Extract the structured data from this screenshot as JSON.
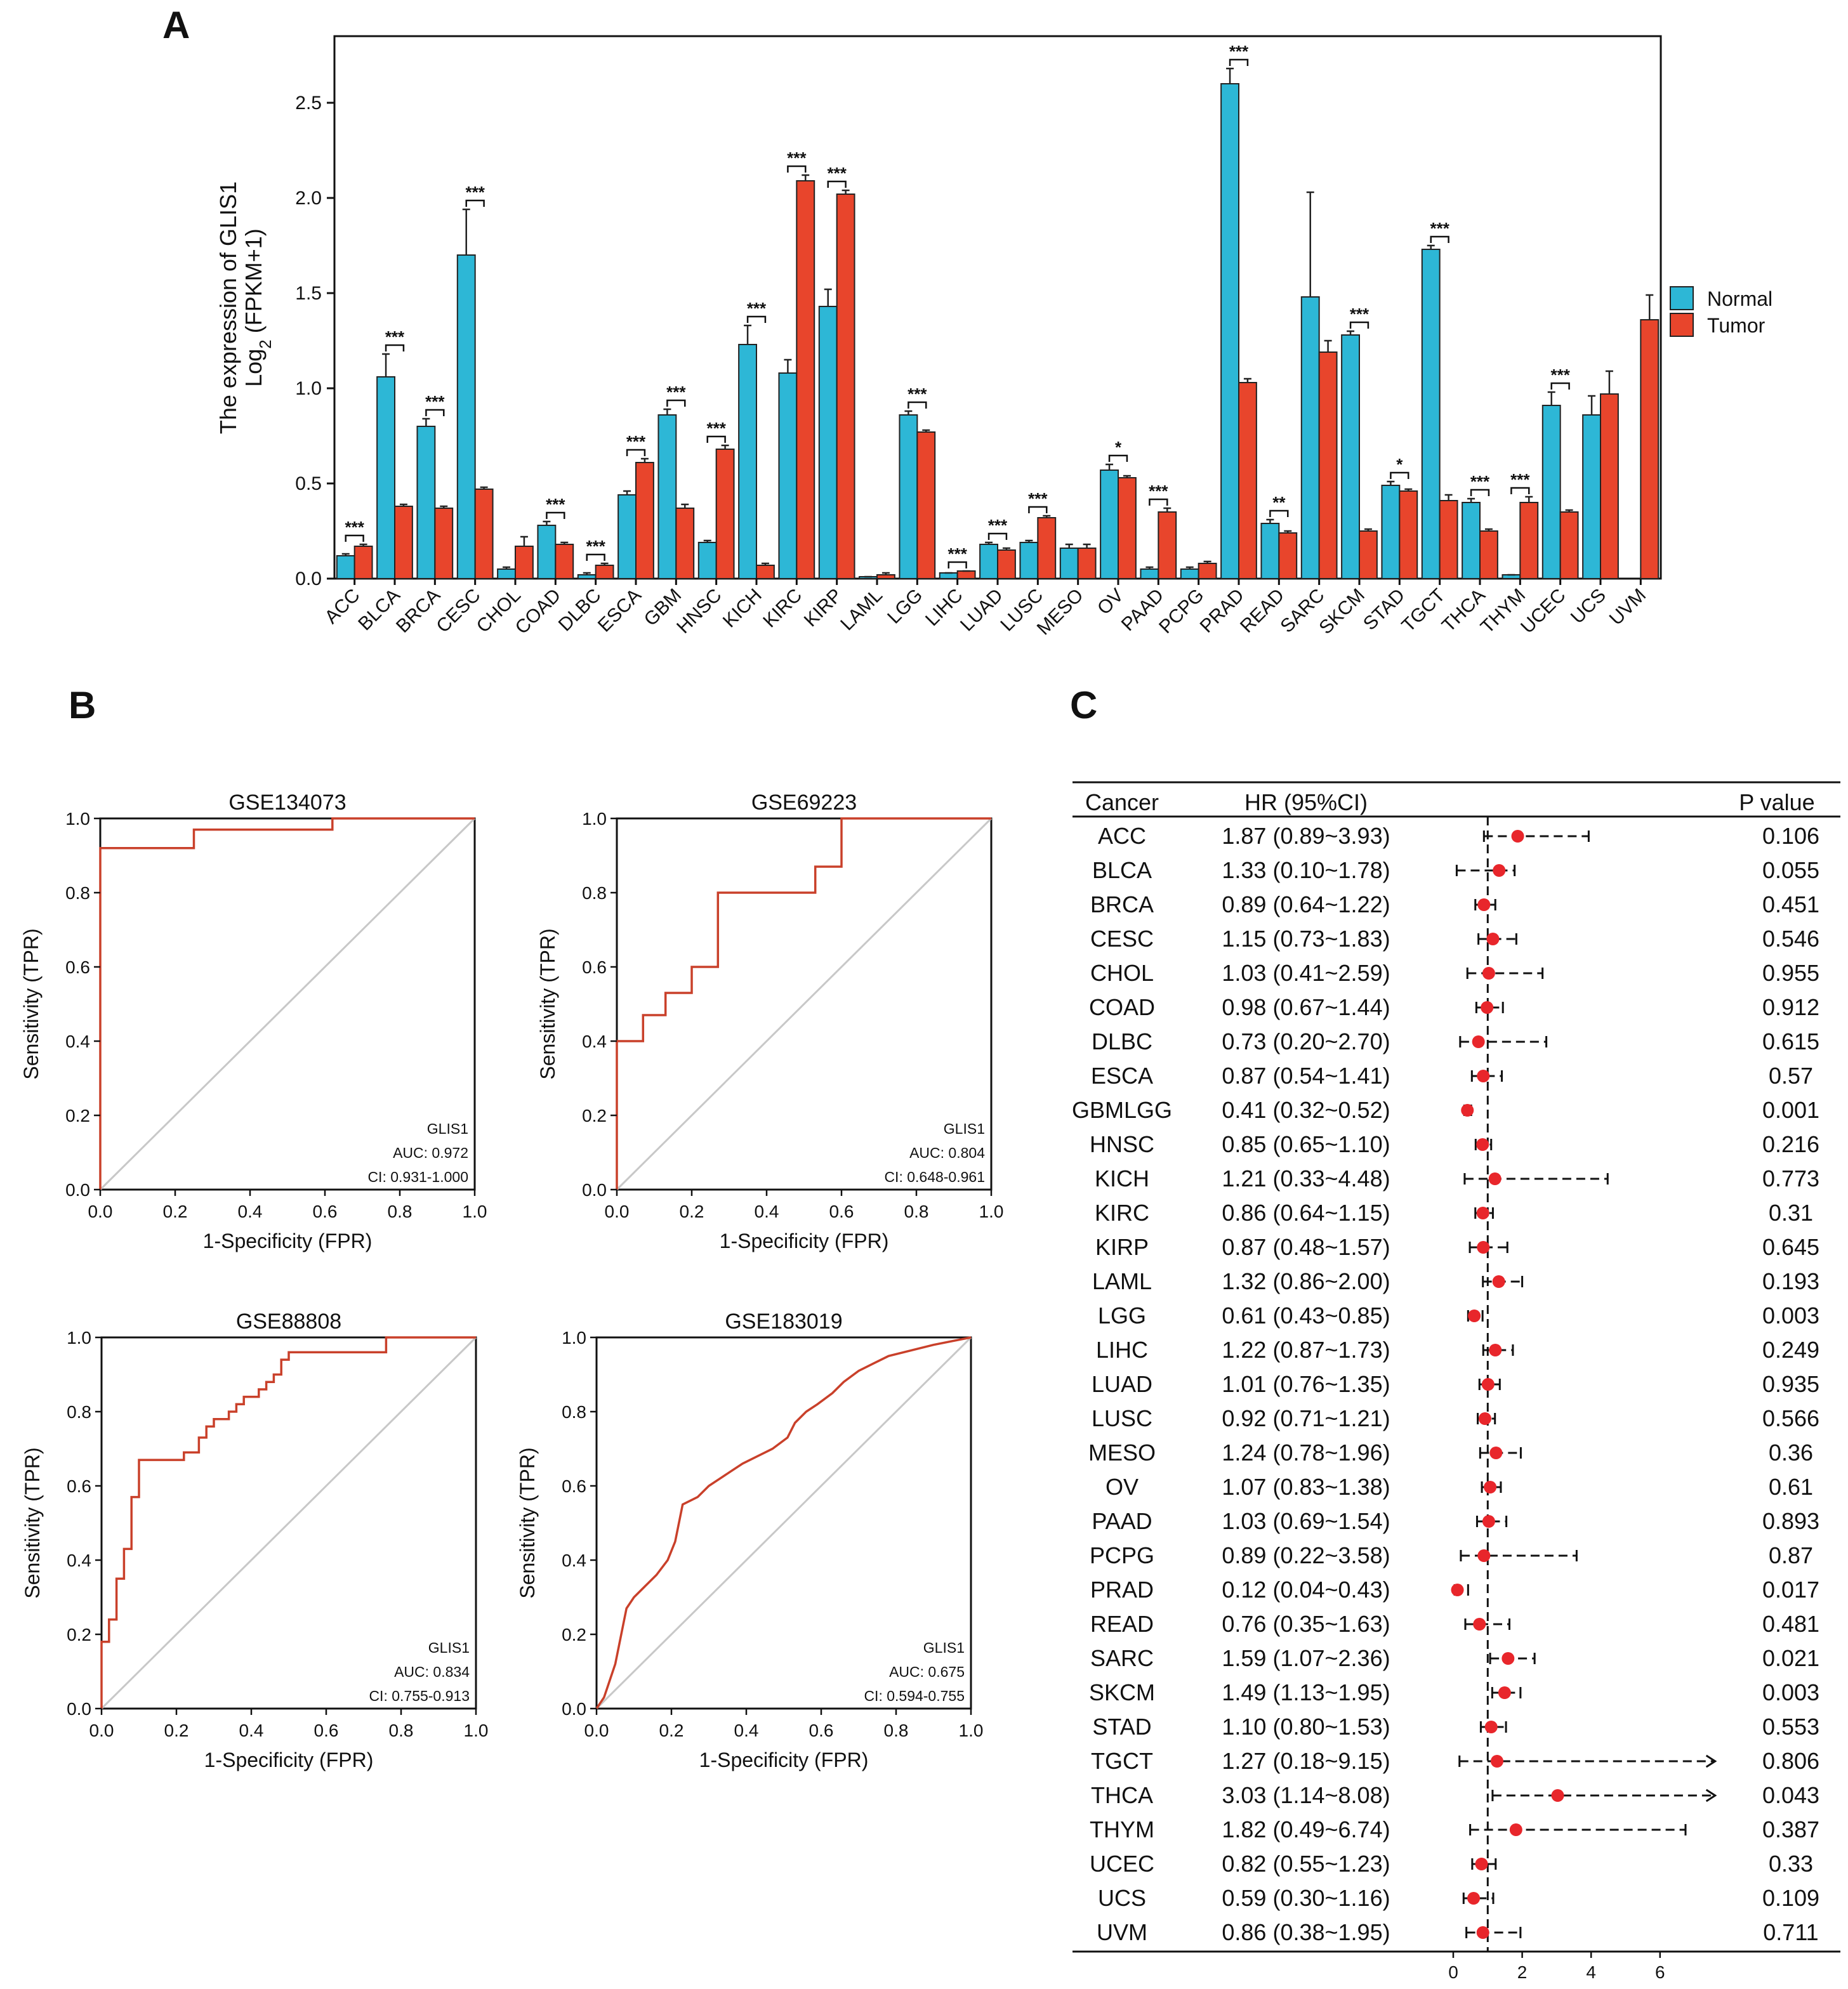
{
  "figure": {
    "panel_labels": [
      "A",
      "B",
      "C"
    ]
  },
  "chart_data": [
    {
      "type": "bar",
      "panel": "A",
      "title": "",
      "ylabel_line1": "The expression of GLIS1",
      "ylabel_line2_base": "Log",
      "ylabel_line2_sub": "2",
      "ylabel_line2_rest": " (FPKM+1)",
      "xlabel": "",
      "ylim": [
        0,
        2.85
      ],
      "yticks": [
        "0.0",
        "0.5",
        "1.0",
        "1.5",
        "2.0",
        "2.5"
      ],
      "ytick_values": [
        0,
        0.5,
        1.0,
        1.5,
        2.0,
        2.5
      ],
      "legend": [
        {
          "name": "Normal",
          "color": "#2db7d6"
        },
        {
          "name": "Tumor",
          "color": "#e8452c"
        }
      ],
      "categories": [
        "ACC",
        "BLCA",
        "BRCA",
        "CESC",
        "CHOL",
        "COAD",
        "DLBC",
        "ESCA",
        "GBM",
        "HNSC",
        "KICH",
        "KIRC",
        "KIRP",
        "LAML",
        "LGG",
        "LIHC",
        "LUAD",
        "LUSC",
        "MESO",
        "OV",
        "PAAD",
        "PCPG",
        "PRAD",
        "READ",
        "SARC",
        "SKCM",
        "STAD",
        "TGCT",
        "THCA",
        "THYM",
        "UCEC",
        "UCS",
        "UVM"
      ],
      "series": [
        {
          "name": "Normal",
          "values": [
            0.12,
            1.06,
            0.8,
            1.7,
            0.05,
            0.28,
            0.02,
            0.44,
            0.86,
            0.19,
            1.23,
            1.08,
            1.43,
            0.01,
            0.86,
            0.03,
            0.18,
            0.19,
            0.16,
            0.57,
            0.05,
            0.05,
            2.6,
            0.29,
            1.48,
            1.28,
            0.49,
            1.73,
            0.4,
            0.02,
            0.91,
            0.86,
            null
          ],
          "errors": [
            0.01,
            0.12,
            0.04,
            0.24,
            0.01,
            0.02,
            0.01,
            0.02,
            0.03,
            0.01,
            0.1,
            0.07,
            0.09,
            0.0,
            0.02,
            0.0,
            0.01,
            0.01,
            0.02,
            0.03,
            0.01,
            0.01,
            0.08,
            0.02,
            0.55,
            0.02,
            0.02,
            0.02,
            0.02,
            0.0,
            0.07,
            0.1,
            null
          ]
        },
        {
          "name": "Tumor",
          "values": [
            0.17,
            0.38,
            0.37,
            0.47,
            0.17,
            0.18,
            0.07,
            0.61,
            0.37,
            0.68,
            0.07,
            2.09,
            2.02,
            0.02,
            0.77,
            0.04,
            0.15,
            0.32,
            0.16,
            0.53,
            0.35,
            0.08,
            1.03,
            0.24,
            1.19,
            0.25,
            0.46,
            0.41,
            0.25,
            0.4,
            0.35,
            0.97,
            1.36
          ],
          "errors": [
            0.01,
            0.01,
            0.01,
            0.01,
            0.05,
            0.01,
            0.01,
            0.02,
            0.02,
            0.02,
            0.01,
            0.03,
            0.02,
            0.01,
            0.01,
            0.0,
            0.01,
            0.01,
            0.02,
            0.01,
            0.02,
            0.01,
            0.02,
            0.01,
            0.06,
            0.01,
            0.01,
            0.03,
            0.01,
            0.03,
            0.01,
            0.12,
            0.13
          ]
        }
      ],
      "significance": [
        "***",
        "***",
        "***",
        "***",
        "",
        "***",
        "***",
        "***",
        "***",
        "***",
        "***",
        "***",
        "***",
        "",
        "***",
        "***",
        "***",
        "***",
        "",
        "*",
        "***",
        "",
        "***",
        "**",
        "",
        "***",
        "*",
        "***",
        "***",
        "***",
        "***",
        "",
        ""
      ]
    },
    {
      "type": "line",
      "panel": "B",
      "title": "GSE134073",
      "xlabel": "1-Specificity (FPR)",
      "ylabel": "Sensitivity (TPR)",
      "xlim": [
        0,
        1
      ],
      "ylim": [
        0,
        1
      ],
      "ticks": [
        "0.0",
        "0.2",
        "0.4",
        "0.6",
        "0.8",
        "1.0"
      ],
      "annotation": [
        "GLIS1",
        "AUC: 0.972",
        "CI: 0.931-1.000"
      ],
      "roc": [
        [
          0,
          0
        ],
        [
          0,
          0.92
        ],
        [
          0.25,
          0.92
        ],
        [
          0.25,
          0.97
        ],
        [
          0.62,
          0.97
        ],
        [
          0.62,
          1.0
        ],
        [
          1,
          1
        ]
      ]
    },
    {
      "type": "line",
      "panel": "B",
      "title": "GSE69223",
      "xlabel": "1-Specificity (FPR)",
      "ylabel": "Sensitivity (TPR)",
      "xlim": [
        0,
        1
      ],
      "ylim": [
        0,
        1
      ],
      "ticks": [
        "0.0",
        "0.2",
        "0.4",
        "0.6",
        "0.8",
        "1.0"
      ],
      "annotation": [
        "GLIS1",
        "AUC: 0.804",
        "CI: 0.648-0.961"
      ],
      "roc": [
        [
          0,
          0
        ],
        [
          0,
          0.4
        ],
        [
          0.07,
          0.4
        ],
        [
          0.07,
          0.47
        ],
        [
          0.13,
          0.47
        ],
        [
          0.13,
          0.53
        ],
        [
          0.2,
          0.53
        ],
        [
          0.2,
          0.6
        ],
        [
          0.27,
          0.6
        ],
        [
          0.27,
          0.8
        ],
        [
          0.53,
          0.8
        ],
        [
          0.53,
          0.87
        ],
        [
          0.6,
          0.87
        ],
        [
          0.6,
          1.0
        ],
        [
          1,
          1
        ]
      ]
    },
    {
      "type": "line",
      "panel": "B",
      "title": "GSE88808",
      "xlabel": "1-Specificity (FPR)",
      "ylabel": "Sensitivity (TPR)",
      "xlim": [
        0,
        1
      ],
      "ylim": [
        0,
        1
      ],
      "ticks": [
        "0.0",
        "0.2",
        "0.4",
        "0.6",
        "0.8",
        "1.0"
      ],
      "annotation": [
        "GLIS1",
        "AUC: 0.834",
        "CI: 0.755-0.913"
      ],
      "roc": [
        [
          0,
          0
        ],
        [
          0,
          0.18
        ],
        [
          0.02,
          0.18
        ],
        [
          0.02,
          0.24
        ],
        [
          0.04,
          0.24
        ],
        [
          0.04,
          0.35
        ],
        [
          0.06,
          0.35
        ],
        [
          0.06,
          0.43
        ],
        [
          0.08,
          0.43
        ],
        [
          0.08,
          0.57
        ],
        [
          0.1,
          0.57
        ],
        [
          0.1,
          0.67
        ],
        [
          0.22,
          0.67
        ],
        [
          0.22,
          0.69
        ],
        [
          0.26,
          0.69
        ],
        [
          0.26,
          0.73
        ],
        [
          0.28,
          0.73
        ],
        [
          0.28,
          0.76
        ],
        [
          0.3,
          0.76
        ],
        [
          0.3,
          0.78
        ],
        [
          0.34,
          0.78
        ],
        [
          0.34,
          0.8
        ],
        [
          0.36,
          0.8
        ],
        [
          0.36,
          0.82
        ],
        [
          0.38,
          0.82
        ],
        [
          0.38,
          0.84
        ],
        [
          0.42,
          0.84
        ],
        [
          0.42,
          0.86
        ],
        [
          0.44,
          0.86
        ],
        [
          0.44,
          0.88
        ],
        [
          0.46,
          0.88
        ],
        [
          0.46,
          0.9
        ],
        [
          0.48,
          0.9
        ],
        [
          0.48,
          0.94
        ],
        [
          0.5,
          0.94
        ],
        [
          0.5,
          0.96
        ],
        [
          0.76,
          0.96
        ],
        [
          0.76,
          1.0
        ],
        [
          1,
          1
        ]
      ]
    },
    {
      "type": "line",
      "panel": "B",
      "title": "GSE183019",
      "xlabel": "1-Specificity (FPR)",
      "ylabel": "Sensitivity (TPR)",
      "xlim": [
        0,
        1
      ],
      "ylim": [
        0,
        1
      ],
      "ticks": [
        "0.0",
        "0.2",
        "0.4",
        "0.6",
        "0.8",
        "1.0"
      ],
      "annotation": [
        "GLIS1",
        "AUC: 0.675",
        "CI: 0.594-0.755"
      ],
      "roc": [
        [
          0,
          0
        ],
        [
          0.02,
          0.03
        ],
        [
          0.03,
          0.06
        ],
        [
          0.04,
          0.09
        ],
        [
          0.05,
          0.12
        ],
        [
          0.06,
          0.17
        ],
        [
          0.07,
          0.22
        ],
        [
          0.08,
          0.27
        ],
        [
          0.1,
          0.3
        ],
        [
          0.13,
          0.33
        ],
        [
          0.16,
          0.36
        ],
        [
          0.19,
          0.4
        ],
        [
          0.21,
          0.45
        ],
        [
          0.23,
          0.55
        ],
        [
          0.27,
          0.57
        ],
        [
          0.3,
          0.6
        ],
        [
          0.33,
          0.62
        ],
        [
          0.36,
          0.64
        ],
        [
          0.39,
          0.66
        ],
        [
          0.43,
          0.68
        ],
        [
          0.47,
          0.7
        ],
        [
          0.51,
          0.73
        ],
        [
          0.53,
          0.77
        ],
        [
          0.56,
          0.8
        ],
        [
          0.59,
          0.82
        ],
        [
          0.63,
          0.85
        ],
        [
          0.66,
          0.88
        ],
        [
          0.7,
          0.91
        ],
        [
          0.74,
          0.93
        ],
        [
          0.78,
          0.95
        ],
        [
          0.82,
          0.96
        ],
        [
          0.86,
          0.97
        ],
        [
          0.9,
          0.98
        ],
        [
          0.95,
          0.99
        ],
        [
          1,
          1
        ]
      ]
    },
    {
      "type": "table",
      "panel": "C",
      "headers": [
        "Cancer",
        "HR (95%CI)",
        "P value"
      ],
      "xlim": [
        0,
        8
      ],
      "xticks": [
        "0",
        "2",
        "4",
        "6"
      ],
      "xtick_values": [
        0,
        2,
        4,
        6
      ],
      "reference": 1,
      "axis_max_clip": 7.6,
      "rows": [
        {
          "cancer": "ACC",
          "hr_text": "1.87 (0.89~3.93)",
          "hr": 1.87,
          "lo": 0.89,
          "hi": 3.93,
          "p": "0.106"
        },
        {
          "cancer": "BLCA",
          "hr_text": "1.33 (0.10~1.78)",
          "hr": 1.33,
          "lo": 0.1,
          "hi": 1.78,
          "p": "0.055"
        },
        {
          "cancer": "BRCA",
          "hr_text": "0.89 (0.64~1.22)",
          "hr": 0.89,
          "lo": 0.64,
          "hi": 1.22,
          "p": "0.451"
        },
        {
          "cancer": "CESC",
          "hr_text": "1.15 (0.73~1.83)",
          "hr": 1.15,
          "lo": 0.73,
          "hi": 1.83,
          "p": "0.546"
        },
        {
          "cancer": "CHOL",
          "hr_text": "1.03 (0.41~2.59)",
          "hr": 1.03,
          "lo": 0.41,
          "hi": 2.59,
          "p": "0.955"
        },
        {
          "cancer": "COAD",
          "hr_text": "0.98 (0.67~1.44)",
          "hr": 0.98,
          "lo": 0.67,
          "hi": 1.44,
          "p": "0.912"
        },
        {
          "cancer": "DLBC",
          "hr_text": "0.73 (0.20~2.70)",
          "hr": 0.73,
          "lo": 0.2,
          "hi": 2.7,
          "p": "0.615"
        },
        {
          "cancer": "ESCA",
          "hr_text": "0.87 (0.54~1.41)",
          "hr": 0.87,
          "lo": 0.54,
          "hi": 1.41,
          "p": "0.57"
        },
        {
          "cancer": "GBMLGG",
          "hr_text": "0.41 (0.32~0.52)",
          "hr": 0.41,
          "lo": 0.32,
          "hi": 0.52,
          "p": "0.001"
        },
        {
          "cancer": "HNSC",
          "hr_text": "0.85 (0.65~1.10)",
          "hr": 0.85,
          "lo": 0.65,
          "hi": 1.1,
          "p": "0.216"
        },
        {
          "cancer": "KICH",
          "hr_text": "1.21 (0.33~4.48)",
          "hr": 1.21,
          "lo": 0.33,
          "hi": 4.48,
          "p": "0.773"
        },
        {
          "cancer": "KIRC",
          "hr_text": "0.86 (0.64~1.15)",
          "hr": 0.86,
          "lo": 0.64,
          "hi": 1.15,
          "p": "0.31"
        },
        {
          "cancer": "KIRP",
          "hr_text": "0.87 (0.48~1.57)",
          "hr": 0.87,
          "lo": 0.48,
          "hi": 1.57,
          "p": "0.645"
        },
        {
          "cancer": "LAML",
          "hr_text": "1.32 (0.86~2.00)",
          "hr": 1.32,
          "lo": 0.86,
          "hi": 2.0,
          "p": "0.193"
        },
        {
          "cancer": "LGG",
          "hr_text": "0.61 (0.43~0.85)",
          "hr": 0.61,
          "lo": 0.43,
          "hi": 0.85,
          "p": "0.003"
        },
        {
          "cancer": "LIHC",
          "hr_text": "1.22 (0.87~1.73)",
          "hr": 1.22,
          "lo": 0.87,
          "hi": 1.73,
          "p": "0.249"
        },
        {
          "cancer": "LUAD",
          "hr_text": "1.01 (0.76~1.35)",
          "hr": 1.01,
          "lo": 0.76,
          "hi": 1.35,
          "p": "0.935"
        },
        {
          "cancer": "LUSC",
          "hr_text": "0.92 (0.71~1.21)",
          "hr": 0.92,
          "lo": 0.71,
          "hi": 1.21,
          "p": "0.566"
        },
        {
          "cancer": "MESO",
          "hr_text": "1.24 (0.78~1.96)",
          "hr": 1.24,
          "lo": 0.78,
          "hi": 1.96,
          "p": "0.36"
        },
        {
          "cancer": "OV",
          "hr_text": "1.07 (0.83~1.38)",
          "hr": 1.07,
          "lo": 0.83,
          "hi": 1.38,
          "p": "0.61"
        },
        {
          "cancer": "PAAD",
          "hr_text": "1.03 (0.69~1.54)",
          "hr": 1.03,
          "lo": 0.69,
          "hi": 1.54,
          "p": "0.893"
        },
        {
          "cancer": "PCPG",
          "hr_text": "0.89 (0.22~3.58)",
          "hr": 0.89,
          "lo": 0.22,
          "hi": 3.58,
          "p": "0.87"
        },
        {
          "cancer": "PRAD",
          "hr_text": "0.12 (0.04~0.43)",
          "hr": 0.12,
          "lo": 0.04,
          "hi": 0.43,
          "p": "0.017"
        },
        {
          "cancer": "READ",
          "hr_text": "0.76 (0.35~1.63)",
          "hr": 0.76,
          "lo": 0.35,
          "hi": 1.63,
          "p": "0.481"
        },
        {
          "cancer": "SARC",
          "hr_text": "1.59 (1.07~2.36)",
          "hr": 1.59,
          "lo": 1.07,
          "hi": 2.36,
          "p": "0.021"
        },
        {
          "cancer": "SKCM",
          "hr_text": "1.49 (1.13~1.95)",
          "hr": 1.49,
          "lo": 1.13,
          "hi": 1.95,
          "p": "0.003"
        },
        {
          "cancer": "STAD",
          "hr_text": "1.10 (0.80~1.53)",
          "hr": 1.1,
          "lo": 0.8,
          "hi": 1.53,
          "p": "0.553"
        },
        {
          "cancer": "TGCT",
          "hr_text": "1.27 (0.18~9.15)",
          "hr": 1.27,
          "lo": 0.18,
          "hi": 9.15,
          "p": "0.806"
        },
        {
          "cancer": "THCA",
          "hr_text": "3.03 (1.14~8.08)",
          "hr": 3.03,
          "lo": 1.14,
          "hi": 8.08,
          "p": "0.043"
        },
        {
          "cancer": "THYM",
          "hr_text": "1.82 (0.49~6.74)",
          "hr": 1.82,
          "lo": 0.49,
          "hi": 6.74,
          "p": "0.387"
        },
        {
          "cancer": "UCEC",
          "hr_text": "0.82 (0.55~1.23)",
          "hr": 0.82,
          "lo": 0.55,
          "hi": 1.23,
          "p": "0.33"
        },
        {
          "cancer": "UCS",
          "hr_text": "0.59 (0.30~1.16)",
          "hr": 0.59,
          "lo": 0.3,
          "hi": 1.16,
          "p": "0.109"
        },
        {
          "cancer": "UVM",
          "hr_text": "0.86 (0.38~1.95)",
          "hr": 0.86,
          "lo": 0.38,
          "hi": 1.95,
          "p": "0.711"
        }
      ]
    }
  ]
}
